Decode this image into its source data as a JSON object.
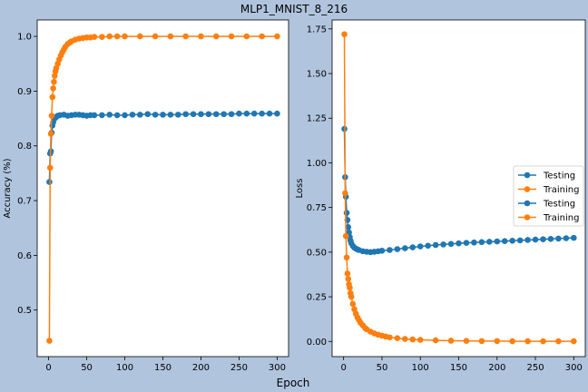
{
  "figure": {
    "title": "MLP1_MNIST_8_216",
    "xlabel": "Epoch"
  },
  "colors": {
    "background": "#b0c4de",
    "testing": "#1f77b4",
    "training": "#ff7f0e"
  },
  "chart_data": [
    {
      "type": "line",
      "title": "",
      "xlabel": "",
      "ylabel": "Accuracy (%)",
      "xlim": [
        -15,
        315
      ],
      "ylim": [
        0.415,
        1.03
      ],
      "xticks": [
        0,
        50,
        100,
        150,
        200,
        250,
        300
      ],
      "yticks": [
        0.5,
        0.6,
        0.7,
        0.8,
        0.9,
        1.0
      ],
      "ytick_labels": [
        "0.5",
        "0.6",
        "0.7",
        "0.8",
        "0.9",
        "1.0"
      ],
      "grid": false,
      "legend": "none",
      "series": [
        {
          "name": "Testing",
          "color": "#1f77b4",
          "x": [
            1,
            2,
            3,
            4,
            5,
            6,
            8,
            10,
            12,
            15,
            20,
            25,
            30,
            35,
            40,
            45,
            50,
            55,
            60,
            70,
            80,
            90,
            100,
            110,
            120,
            130,
            140,
            150,
            160,
            170,
            180,
            190,
            200,
            210,
            220,
            230,
            240,
            250,
            260,
            270,
            280,
            290,
            300
          ],
          "y": [
            0.734,
            0.786,
            0.79,
            0.824,
            0.837,
            0.843,
            0.85,
            0.853,
            0.855,
            0.856,
            0.857,
            0.855,
            0.856,
            0.857,
            0.857,
            0.856,
            0.855,
            0.856,
            0.856,
            0.856,
            0.857,
            0.856,
            0.856,
            0.857,
            0.857,
            0.858,
            0.857,
            0.857,
            0.857,
            0.857,
            0.858,
            0.858,
            0.858,
            0.858,
            0.858,
            0.858,
            0.858,
            0.859,
            0.859,
            0.859,
            0.859,
            0.859,
            0.859
          ]
        },
        {
          "name": "Training",
          "color": "#ff7f0e",
          "x": [
            1,
            2,
            3,
            4,
            5,
            6,
            7,
            8,
            9,
            10,
            12,
            14,
            16,
            18,
            20,
            22,
            25,
            28,
            30,
            35,
            40,
            45,
            50,
            55,
            60,
            70,
            80,
            90,
            100,
            120,
            140,
            160,
            180,
            200,
            220,
            240,
            260,
            280,
            300
          ],
          "y": [
            0.444,
            0.76,
            0.822,
            0.855,
            0.889,
            0.905,
            0.917,
            0.928,
            0.936,
            0.942,
            0.95,
            0.958,
            0.965,
            0.971,
            0.976,
            0.981,
            0.986,
            0.989,
            0.991,
            0.994,
            0.996,
            0.997,
            0.998,
            0.998,
            0.999,
            0.999,
            1.0,
            1.0,
            1.0,
            1.0,
            1.0,
            1.0,
            1.0,
            1.0,
            1.0,
            1.0,
            1.0,
            1.0,
            1.0
          ]
        }
      ]
    },
    {
      "type": "line",
      "title": "",
      "xlabel": "",
      "ylabel": "Loss",
      "xlim": [
        -15,
        315
      ],
      "ylim": [
        -0.085,
        1.8
      ],
      "xticks": [
        0,
        50,
        100,
        150,
        200,
        250,
        300
      ],
      "yticks": [
        0.0,
        0.25,
        0.5,
        0.75,
        1.0,
        1.25,
        1.5,
        1.75
      ],
      "ytick_labels": [
        "0.00",
        "0.25",
        "0.50",
        "0.75",
        "1.00",
        "1.25",
        "1.50",
        "1.75"
      ],
      "grid": false,
      "legend": "center-right",
      "series": [
        {
          "name": "Testing",
          "color": "#1f77b4",
          "x": [
            1,
            2,
            3,
            4,
            5,
            6,
            7,
            8,
            9,
            10,
            12,
            14,
            16,
            18,
            20,
            25,
            30,
            35,
            40,
            45,
            50,
            60,
            70,
            80,
            90,
            100,
            110,
            120,
            130,
            140,
            150,
            160,
            170,
            180,
            190,
            200,
            210,
            220,
            230,
            240,
            250,
            260,
            270,
            280,
            290,
            300
          ],
          "y": [
            1.19,
            0.92,
            0.81,
            0.72,
            0.68,
            0.64,
            0.61,
            0.585,
            0.565,
            0.55,
            0.535,
            0.525,
            0.52,
            0.515,
            0.512,
            0.505,
            0.502,
            0.5,
            0.502,
            0.505,
            0.508,
            0.512,
            0.517,
            0.522,
            0.527,
            0.532,
            0.536,
            0.54,
            0.543,
            0.546,
            0.549,
            0.552,
            0.554,
            0.556,
            0.558,
            0.56,
            0.562,
            0.564,
            0.566,
            0.568,
            0.57,
            0.572,
            0.574,
            0.576,
            0.578,
            0.58
          ]
        },
        {
          "name": "Training",
          "color": "#ff7f0e",
          "x": [
            1,
            2,
            3,
            4,
            5,
            6,
            7,
            8,
            9,
            10,
            12,
            14,
            16,
            18,
            20,
            22,
            25,
            28,
            30,
            35,
            40,
            45,
            50,
            55,
            60,
            70,
            80,
            90,
            100,
            120,
            140,
            160,
            180,
            200,
            220,
            240,
            260,
            280,
            300
          ],
          "y": [
            1.72,
            0.83,
            0.59,
            0.47,
            0.38,
            0.35,
            0.32,
            0.3,
            0.27,
            0.25,
            0.21,
            0.18,
            0.155,
            0.135,
            0.12,
            0.105,
            0.09,
            0.075,
            0.068,
            0.055,
            0.045,
            0.038,
            0.032,
            0.027,
            0.023,
            0.018,
            0.014,
            0.011,
            0.009,
            0.006,
            0.004,
            0.003,
            0.002,
            0.002,
            0.001,
            0.001,
            0.001,
            0.001,
            0.001
          ]
        }
      ],
      "legend_entries": [
        "Testing",
        "Training",
        "Testing",
        "Training"
      ]
    }
  ]
}
